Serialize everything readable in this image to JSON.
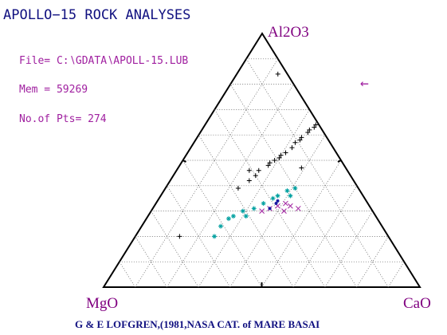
{
  "chart_data": {
    "type": "ternary",
    "title": "APOLLO−15 ROCK ANALYSES",
    "info": [
      "File= C:∖GDATA∖APOLL-15.LUB",
      "Mem = 59269",
      "No.of Pts= 274"
    ],
    "arrow": "←",
    "apex_labels": {
      "top": "Al2O3",
      "left": "MgO",
      "right": "CaO"
    },
    "footer": "G & E LOFGREN,(1981,NASA CAT. of MARE BASAI",
    "ticks": [
      10,
      20,
      30,
      40,
      50,
      60,
      70,
      80,
      90
    ],
    "side_ticks": [
      50
    ],
    "grid": true,
    "series": [
      {
        "marker": "plus",
        "color": "#000000",
        "al2o3": [
          64,
          63,
          62,
          61,
          59,
          58,
          57,
          55,
          53,
          52,
          51,
          50,
          49,
          48,
          46,
          46,
          42,
          39,
          84,
          20,
          47,
          44
        ],
        "cao": [
          35,
          35,
          34,
          34,
          33,
          33,
          32,
          32,
          31,
          30,
          30,
          29,
          28,
          28,
          26,
          23,
          25,
          23,
          13,
          14,
          39,
          26
        ],
        "mgo": [
          1,
          2,
          4,
          5,
          8,
          9,
          11,
          13,
          16,
          18,
          19,
          21,
          23,
          24,
          28,
          31,
          33,
          38,
          3,
          66,
          14,
          30
        ]
      },
      {
        "marker": "asterisk",
        "color": "#00a0a0",
        "al2o3": [
          20,
          24,
          27,
          28,
          30,
          31,
          33,
          35,
          36,
          38,
          39,
          36,
          28
        ],
        "cao": [
          25,
          25,
          26,
          27,
          29,
          32,
          34,
          36,
          37,
          39,
          41,
          41,
          31
        ],
        "mgo": [
          55,
          51,
          47,
          45,
          41,
          37,
          33,
          29,
          27,
          23,
          20,
          23,
          41
        ]
      },
      {
        "marker": "x",
        "color": "#a020a0",
        "al2o3": [
          30,
          31,
          32,
          33,
          32,
          31,
          30
        ],
        "cao": [
          35,
          37,
          39,
          41,
          43,
          46,
          42
        ],
        "mgo": [
          35,
          32,
          29,
          26,
          25,
          23,
          28
        ]
      },
      {
        "marker": "dot",
        "color": "#1818a0",
        "al2o3": [
          33,
          31,
          34
        ],
        "cao": [
          38,
          37,
          38
        ],
        "mgo": [
          29,
          32,
          28
        ]
      }
    ]
  }
}
